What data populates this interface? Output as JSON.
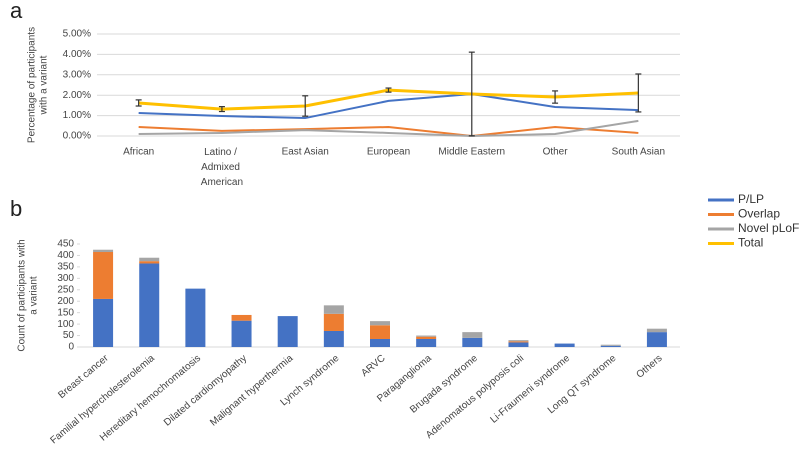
{
  "chart_data": [
    {
      "type": "line",
      "panel_label": "a",
      "y_label": [
        "Percentage of participants",
        "with a variant"
      ],
      "categories": [
        "African",
        "Latino / Admixed American",
        "East Asian",
        "European",
        "Middle Eastern",
        "Other",
        "South Asian"
      ],
      "ylim": [
        0,
        5
      ],
      "yticks": [
        {
          "value": 0,
          "label": "0.00%"
        },
        {
          "value": 1,
          "label": "1.00%"
        },
        {
          "value": 2,
          "label": "2.00%"
        },
        {
          "value": 3,
          "label": "3.00%"
        },
        {
          "value": 4,
          "label": "4.00%"
        },
        {
          "value": 5,
          "label": "5.00%"
        }
      ],
      "grid": true,
      "legend": "right",
      "series": [
        {
          "name": "P/LP",
          "color": "#4472c4",
          "values": [
            1.13,
            0.98,
            0.88,
            1.72,
            2.06,
            1.42,
            1.27
          ]
        },
        {
          "name": "Overlap",
          "color": "#ed7d31",
          "values": [
            0.44,
            0.25,
            0.34,
            0.44,
            0,
            0.44,
            0.15
          ]
        },
        {
          "name": "Novel pLoF",
          "color": "#a5a5a5",
          "values": [
            0.1,
            0.15,
            0.29,
            0.15,
            0,
            0.1,
            0.74
          ]
        },
        {
          "name": "Total",
          "color": "#ffc000",
          "values": [
            1.62,
            1.32,
            1.47,
            2.25,
            2.06,
            1.91,
            2.11
          ],
          "errors": [
            0.15,
            0.12,
            0.5,
            0.1,
            2.05,
            0.3,
            0.93
          ]
        }
      ]
    },
    {
      "type": "stacked_bar",
      "panel_label": "b",
      "y_label": [
        "Count of participants with",
        "a variant"
      ],
      "categories": [
        "Breast cancer",
        "Familial hypercholesterolemia",
        "Hereditary hemochromatosis",
        "Dilated cardiomyopathy",
        "Malignant hyperthermia",
        "Lynch syndrome",
        "ARVC",
        "Paraganglioma",
        "Brugada syndrome",
        "Adenomatous polyposis coli",
        "Li-Fraumeni syndrome",
        "Long QT syndrome",
        "Others"
      ],
      "ylim": [
        0,
        450
      ],
      "yticks": [
        0,
        50,
        100,
        150,
        200,
        250,
        300,
        350,
        400,
        450
      ],
      "series": [
        {
          "color": "#4472c4",
          "values": [
            210,
            365,
            255,
            115,
            135,
            70,
            35,
            35,
            40,
            20,
            15,
            5,
            65
          ]
        },
        {
          "color": "#ed7d31",
          "values": [
            205,
            10,
            0,
            25,
            0,
            75,
            60,
            10,
            0,
            5,
            0,
            0,
            0
          ]
        },
        {
          "color": "#a5a5a5",
          "values": [
            10,
            15,
            0,
            0,
            0,
            37,
            18,
            5,
            25,
            5,
            0,
            5,
            15
          ]
        }
      ]
    }
  ]
}
